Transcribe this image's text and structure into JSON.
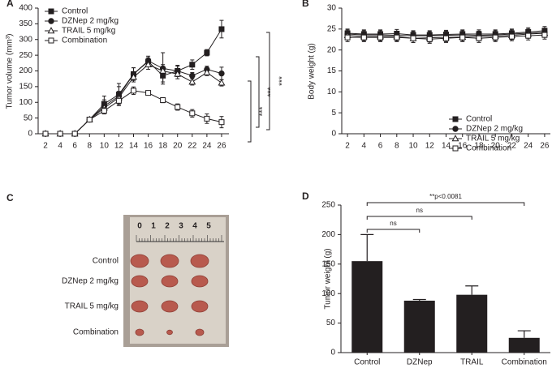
{
  "chart_data": [
    {
      "type": "line",
      "panel_label": "A",
      "y_label": "Tumor volume (mm³)",
      "x": [
        2,
        4,
        6,
        8,
        10,
        12,
        14,
        16,
        18,
        20,
        22,
        24,
        26
      ],
      "xlim": [
        1,
        27
      ],
      "xticks": [
        2,
        4,
        6,
        8,
        10,
        12,
        14,
        16,
        18,
        20,
        22,
        24,
        26
      ],
      "ylim": [
        0,
        400
      ],
      "yticks": [
        0,
        50,
        100,
        150,
        200,
        250,
        300,
        350,
        400
      ],
      "legend": "upper left",
      "series": [
        {
          "name": "Control",
          "color": "#231f20",
          "marker": "square",
          "values": [
            0,
            0,
            0,
            45,
            95,
            125,
            190,
            230,
            185,
            200,
            220,
            258,
            333
          ],
          "errors": [
            0,
            0,
            0,
            4,
            25,
            35,
            20,
            12,
            20,
            18,
            15,
            10,
            28
          ]
        },
        {
          "name": "DZNep 2 mg/kg",
          "color": "#231f20",
          "marker": "circle",
          "values": [
            0,
            0,
            0,
            45,
            88,
            120,
            190,
            232,
            208,
            200,
            185,
            205,
            192
          ],
          "errors": [
            0,
            0,
            0,
            4,
            20,
            30,
            20,
            15,
            50,
            15,
            10,
            10,
            20
          ]
        },
        {
          "name": "TRAIL 5 mg/kg",
          "color": "#231f20",
          "marker": "triangle",
          "values": [
            0,
            0,
            0,
            45,
            82,
            115,
            180,
            220,
            200,
            190,
            165,
            195,
            162
          ],
          "errors": [
            0,
            0,
            0,
            4,
            15,
            20,
            15,
            15,
            20,
            15,
            10,
            10,
            10
          ]
        },
        {
          "name": "Combination",
          "color": "#231f20",
          "marker": "open-square",
          "values": [
            0,
            0,
            0,
            45,
            73,
            105,
            137,
            130,
            107,
            85,
            65,
            48,
            37
          ],
          "errors": [
            0,
            0,
            0,
            4,
            10,
            15,
            12,
            5,
            8,
            10,
            12,
            15,
            18
          ]
        }
      ],
      "annotations": [
        "***",
        "***",
        "***"
      ]
    },
    {
      "type": "line",
      "panel_label": "B",
      "y_label": "Body weight (g)",
      "x": [
        2,
        4,
        6,
        8,
        10,
        12,
        14,
        16,
        18,
        20,
        22,
        24,
        26
      ],
      "xlim": [
        1.3,
        26.7
      ],
      "xticks": [
        2,
        4,
        6,
        8,
        10,
        12,
        14,
        16,
        18,
        20,
        22,
        24,
        26
      ],
      "ylim": [
        0,
        30
      ],
      "yticks": [
        0,
        5,
        10,
        15,
        20,
        25,
        30
      ],
      "legend": "lower right",
      "series": [
        {
          "name": "Control",
          "color": "#231f20",
          "marker": "square",
          "values": [
            24,
            23.8,
            23.8,
            23.9,
            23.6,
            23.6,
            23.7,
            23.8,
            23.8,
            23.8,
            24,
            24.3,
            24.6
          ],
          "errors": [
            1,
            1,
            1,
            1,
            1,
            1,
            1,
            1,
            1,
            1,
            1,
            1,
            1
          ]
        },
        {
          "name": "DZNep 2 mg/kg",
          "color": "#231f20",
          "marker": "circle",
          "values": [
            23.8,
            23.6,
            23.6,
            23.5,
            23.4,
            23.4,
            23.5,
            23.6,
            23.5,
            23.6,
            23.8,
            24,
            24.2
          ],
          "errors": [
            1,
            1,
            1,
            1,
            1,
            1,
            1,
            1,
            1,
            1,
            1,
            1,
            1
          ]
        },
        {
          "name": "TRAIL 5 mg/kg",
          "color": "#231f20",
          "marker": "triangle",
          "values": [
            23.5,
            23.2,
            23.2,
            23.2,
            22.8,
            22.9,
            23,
            23.1,
            23.2,
            23.3,
            23.5,
            23.8,
            24
          ],
          "errors": [
            1,
            1,
            1,
            1,
            1,
            1,
            1,
            1,
            1,
            1,
            1,
            1,
            1
          ]
        },
        {
          "name": "Combination",
          "color": "#231f20",
          "marker": "open-square",
          "values": [
            23,
            23,
            23,
            23,
            22.8,
            22.6,
            22.8,
            23,
            22.8,
            23,
            23.2,
            23.4,
            23.6
          ],
          "errors": [
            1,
            1,
            1,
            1,
            1,
            1,
            1,
            1,
            1,
            1,
            1,
            1,
            1
          ]
        }
      ]
    },
    {
      "type": "bar",
      "panel_label": "D",
      "y_label": "Tumor weight (g)",
      "categories": [
        "Control",
        "DZNep",
        "TRAIL",
        "Combination"
      ],
      "values": [
        155,
        88,
        98,
        25
      ],
      "errors": [
        45,
        2,
        15,
        12
      ],
      "color": "#231f20",
      "ylim": [
        0,
        250
      ],
      "yticks": [
        0,
        50,
        100,
        150,
        200,
        250
      ],
      "annotations": [
        "ns",
        "ns",
        "**p<0.0081"
      ]
    }
  ],
  "photo": {
    "panel_label": "C",
    "scale": [
      "0",
      "1",
      "2",
      "3",
      "4",
      "5"
    ],
    "rows": [
      "Control",
      "DZNep 2 mg/kg",
      "TRAIL 5 mg/kg",
      "Combination"
    ]
  }
}
